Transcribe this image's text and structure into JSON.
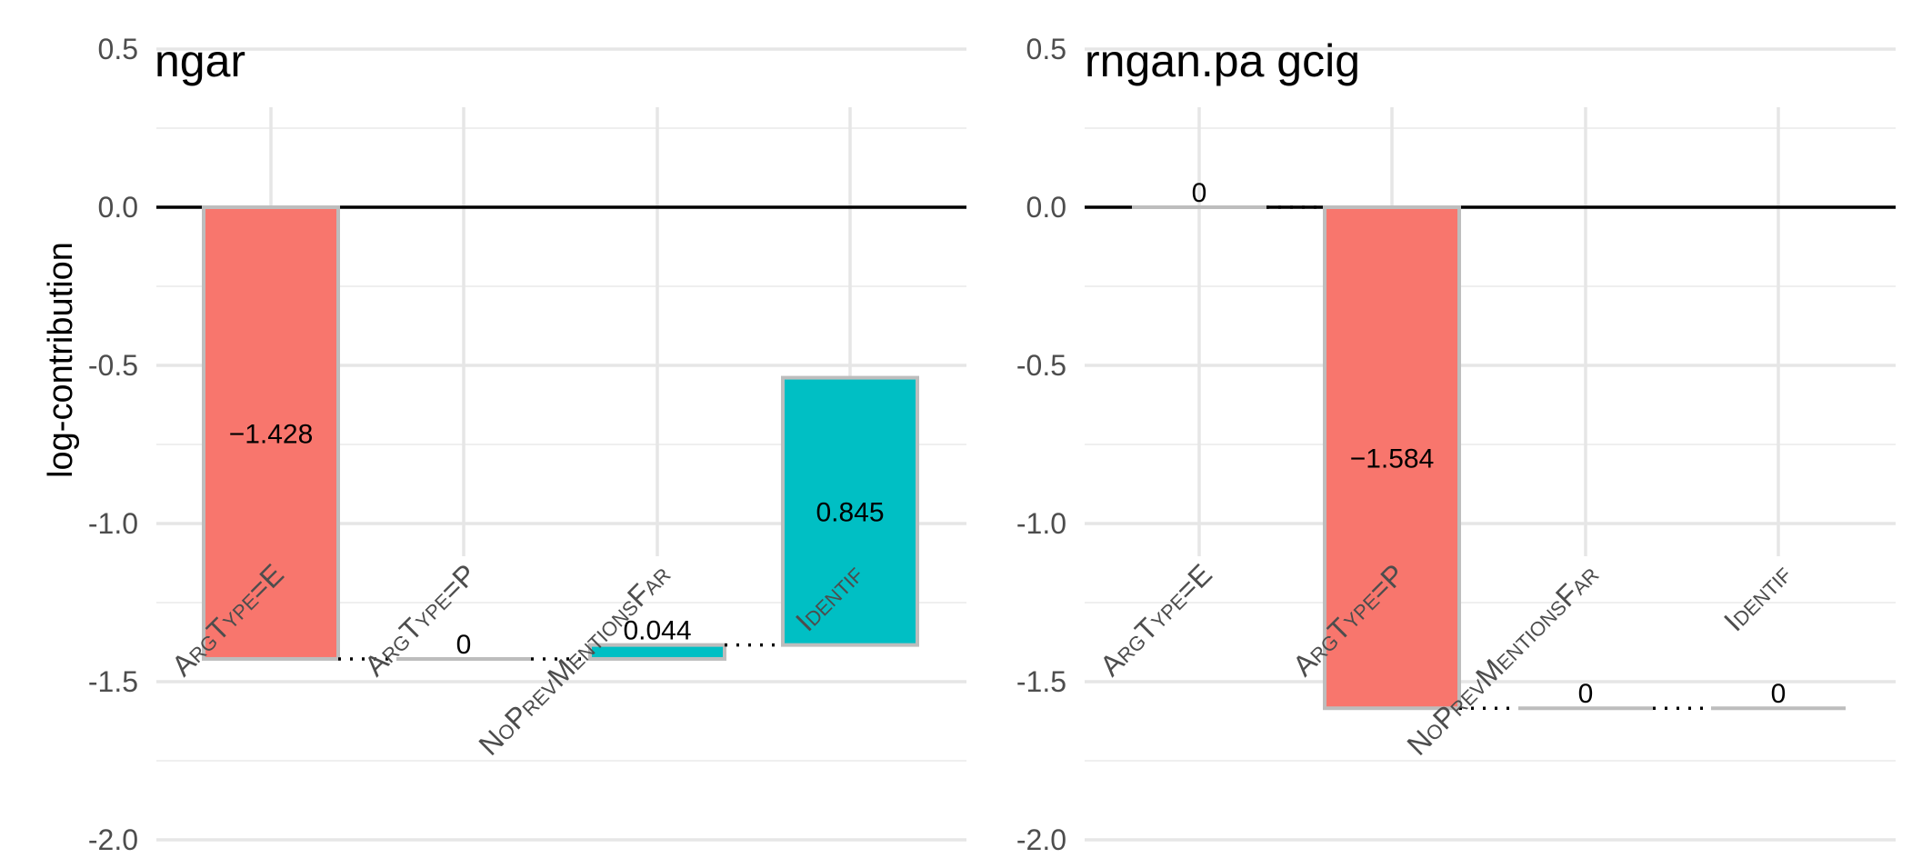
{
  "y_axis_label": "log-contribution",
  "colors": {
    "negative": "#F8766D",
    "positive": "#00BFC4",
    "zero": "#BDBDBD",
    "bar_outline": "#BDBDBD"
  },
  "chart_data": [
    {
      "type": "bar",
      "subtype": "waterfall",
      "title": "ngar",
      "categories": [
        "ArgType=E",
        "ArgType=P",
        "NoPrevMentionsFar",
        "Identif"
      ],
      "values": [
        -1.428,
        0,
        0.044,
        0.845
      ],
      "labels": [
        "−1.428",
        "0",
        "0.044",
        "0.845"
      ],
      "ylabel": "log-contribution",
      "ylim": [
        -2.2,
        0.6
      ],
      "yticks": [
        0.5,
        0.0,
        -0.5,
        -1.0,
        -1.5,
        -2.0
      ],
      "ytick_labels": [
        "0.5",
        "0.0",
        "-0.5",
        "-1.0",
        "-1.5",
        "-2.0"
      ],
      "grid": true,
      "legend": "none"
    },
    {
      "type": "bar",
      "subtype": "waterfall",
      "title": "rngan.pa gcig",
      "categories": [
        "ArgType=E",
        "ArgType=P",
        "NoPrevMentionsFar",
        "Identif"
      ],
      "values": [
        0,
        -1.584,
        0,
        0
      ],
      "labels": [
        "0",
        "−1.584",
        "0",
        "0"
      ],
      "ylabel": "",
      "ylim": [
        -2.2,
        0.6
      ],
      "yticks": [
        0.5,
        0.0,
        -0.5,
        -1.0,
        -1.5,
        -2.0
      ],
      "ytick_labels": [
        "0.5",
        "0.0",
        "-0.5",
        "-1.0",
        "-1.5",
        "-2.0"
      ],
      "grid": true,
      "legend": "none"
    }
  ]
}
